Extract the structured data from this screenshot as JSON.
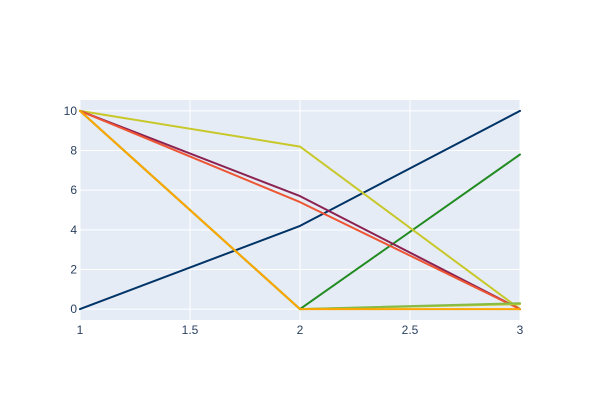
{
  "chart_data": {
    "type": "line",
    "title": "",
    "xlabel": "",
    "ylabel": "",
    "xlim": [
      1,
      3
    ],
    "ylim": [
      -0.55,
      10.55
    ],
    "grid": true,
    "legend": "none",
    "x": [
      1,
      2,
      3
    ],
    "x_ticks": [
      1,
      1.5,
      2,
      2.5,
      3
    ],
    "x_tick_labels": [
      "1",
      "1.5",
      "2",
      "2.5",
      "3"
    ],
    "y_ticks": [
      0,
      2,
      4,
      6,
      8,
      10
    ],
    "y_tick_labels": [
      "0",
      "2",
      "4",
      "6",
      "8",
      "10"
    ],
    "colors": {
      "plot_background": "#e5ecf6",
      "gridline": "#ffffff",
      "tick_text": "#2a3f5f"
    },
    "series": [
      {
        "color": "#003366",
        "values": [
          0,
          4.2,
          10
        ]
      },
      {
        "color": "#228b22",
        "values": [
          10,
          0,
          7.8
        ]
      },
      {
        "color": "#c8c82a",
        "values": [
          10,
          8.2,
          0
        ]
      },
      {
        "color": "#8b2252",
        "values": [
          10,
          5.7,
          0
        ]
      },
      {
        "color": "#ee5533",
        "values": [
          10,
          5.4,
          0
        ]
      },
      {
        "color": "#b8cc30",
        "values": [
          10,
          0,
          0.25
        ]
      },
      {
        "color": "#88bb44",
        "values": [
          10,
          0,
          0.3
        ]
      },
      {
        "color": "#ffa500",
        "values": [
          10,
          0,
          0
        ]
      }
    ]
  }
}
